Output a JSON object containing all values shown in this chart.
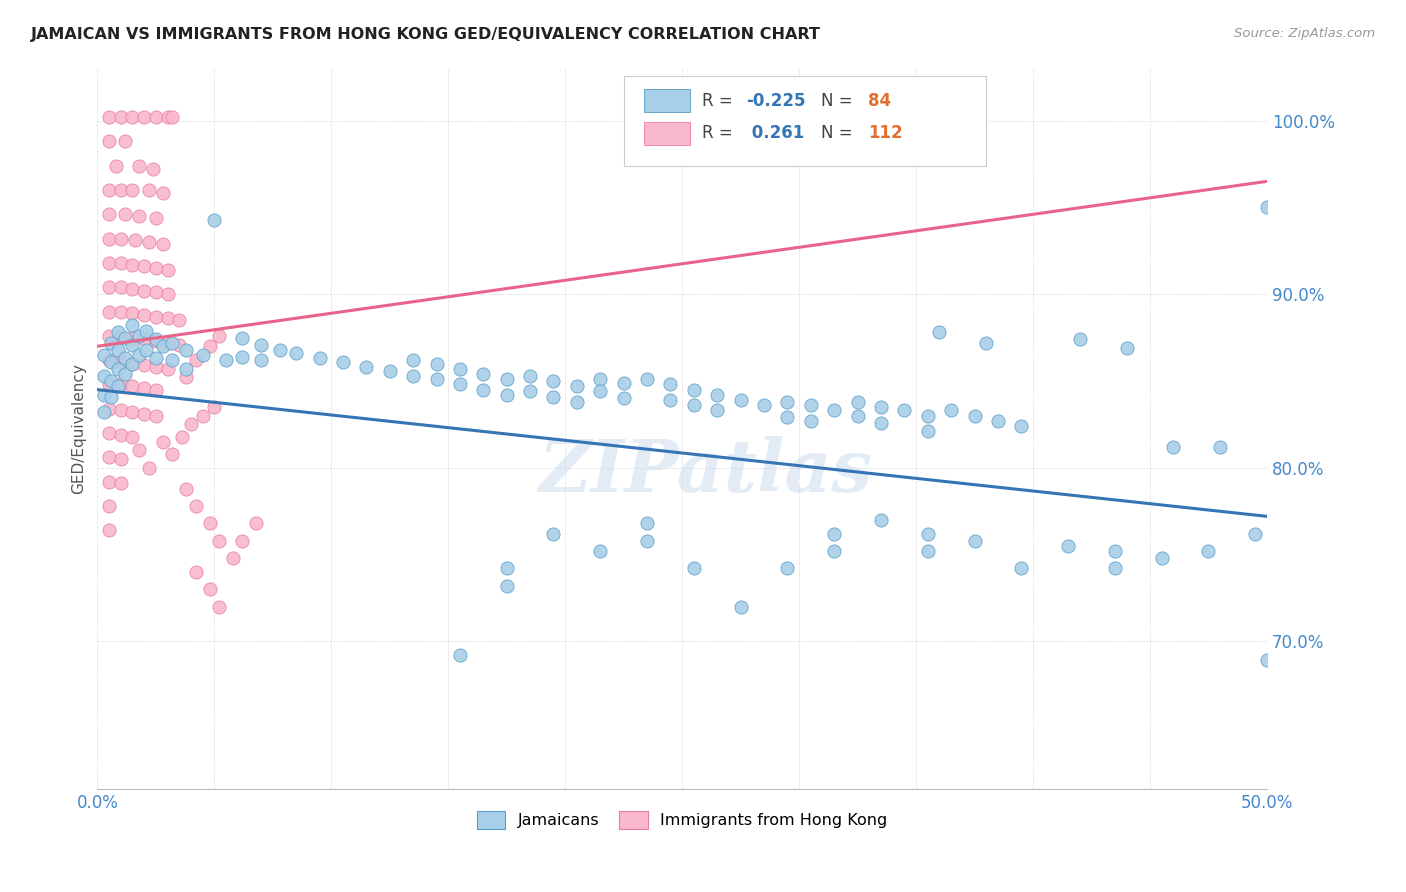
{
  "title": "JAMAICAN VS IMMIGRANTS FROM HONG KONG GED/EQUIVALENCY CORRELATION CHART",
  "source": "Source: ZipAtlas.com",
  "ylabel": "GED/Equivalency",
  "xlim": [
    0.0,
    0.5
  ],
  "ylim": [
    0.615,
    1.03
  ],
  "ytick_positions": [
    0.7,
    0.8,
    0.9,
    1.0
  ],
  "ytick_labels": [
    "70.0%",
    "80.0%",
    "90.0%",
    "100.0%"
  ],
  "blue_color": "#a8cfe8",
  "pink_color": "#f9b8cb",
  "blue_edge_color": "#5b9dc9",
  "pink_edge_color": "#e87da0",
  "blue_line_color": "#3575b5",
  "pink_line_color": "#e8648a",
  "R_blue": -0.225,
  "N_blue": 84,
  "R_pink": 0.261,
  "N_pink": 112,
  "legend_R_color": "#3575b5",
  "legend_N_color": "#e07030",
  "watermark": "ZIPatlas",
  "legend_label_blue": "Jamaicans",
  "legend_label_pink": "Immigrants from Hong Kong",
  "blue_points": [
    [
      0.003,
      0.865
    ],
    [
      0.003,
      0.853
    ],
    [
      0.003,
      0.842
    ],
    [
      0.003,
      0.832
    ],
    [
      0.006,
      0.872
    ],
    [
      0.006,
      0.861
    ],
    [
      0.006,
      0.85
    ],
    [
      0.006,
      0.841
    ],
    [
      0.009,
      0.878
    ],
    [
      0.009,
      0.868
    ],
    [
      0.009,
      0.857
    ],
    [
      0.009,
      0.847
    ],
    [
      0.012,
      0.875
    ],
    [
      0.012,
      0.863
    ],
    [
      0.012,
      0.854
    ],
    [
      0.015,
      0.882
    ],
    [
      0.015,
      0.871
    ],
    [
      0.015,
      0.86
    ],
    [
      0.018,
      0.876
    ],
    [
      0.018,
      0.865
    ],
    [
      0.021,
      0.879
    ],
    [
      0.021,
      0.868
    ],
    [
      0.025,
      0.874
    ],
    [
      0.025,
      0.863
    ],
    [
      0.028,
      0.87
    ],
    [
      0.032,
      0.872
    ],
    [
      0.032,
      0.862
    ],
    [
      0.038,
      0.868
    ],
    [
      0.038,
      0.857
    ],
    [
      0.045,
      0.865
    ],
    [
      0.05,
      0.943
    ],
    [
      0.055,
      0.862
    ],
    [
      0.062,
      0.875
    ],
    [
      0.062,
      0.864
    ],
    [
      0.07,
      0.871
    ],
    [
      0.07,
      0.862
    ],
    [
      0.078,
      0.868
    ],
    [
      0.085,
      0.866
    ],
    [
      0.095,
      0.863
    ],
    [
      0.105,
      0.861
    ],
    [
      0.115,
      0.858
    ],
    [
      0.125,
      0.856
    ],
    [
      0.135,
      0.862
    ],
    [
      0.135,
      0.853
    ],
    [
      0.145,
      0.86
    ],
    [
      0.145,
      0.851
    ],
    [
      0.155,
      0.857
    ],
    [
      0.155,
      0.848
    ],
    [
      0.165,
      0.854
    ],
    [
      0.165,
      0.845
    ],
    [
      0.175,
      0.851
    ],
    [
      0.175,
      0.842
    ],
    [
      0.185,
      0.853
    ],
    [
      0.185,
      0.844
    ],
    [
      0.195,
      0.85
    ],
    [
      0.195,
      0.841
    ],
    [
      0.205,
      0.847
    ],
    [
      0.205,
      0.838
    ],
    [
      0.215,
      0.851
    ],
    [
      0.215,
      0.844
    ],
    [
      0.225,
      0.849
    ],
    [
      0.225,
      0.84
    ],
    [
      0.235,
      0.851
    ],
    [
      0.245,
      0.848
    ],
    [
      0.245,
      0.839
    ],
    [
      0.255,
      0.845
    ],
    [
      0.255,
      0.836
    ],
    [
      0.265,
      0.842
    ],
    [
      0.265,
      0.833
    ],
    [
      0.275,
      0.839
    ],
    [
      0.285,
      0.836
    ],
    [
      0.295,
      0.838
    ],
    [
      0.295,
      0.829
    ],
    [
      0.305,
      0.836
    ],
    [
      0.305,
      0.827
    ],
    [
      0.315,
      0.833
    ],
    [
      0.325,
      0.838
    ],
    [
      0.325,
      0.83
    ],
    [
      0.335,
      0.835
    ],
    [
      0.335,
      0.826
    ],
    [
      0.345,
      0.833
    ],
    [
      0.355,
      0.83
    ],
    [
      0.355,
      0.821
    ],
    [
      0.365,
      0.833
    ],
    [
      0.375,
      0.83
    ],
    [
      0.385,
      0.827
    ],
    [
      0.395,
      0.824
    ],
    [
      0.155,
      0.692
    ],
    [
      0.175,
      0.742
    ],
    [
      0.175,
      0.732
    ],
    [
      0.195,
      0.762
    ],
    [
      0.215,
      0.752
    ],
    [
      0.235,
      0.768
    ],
    [
      0.235,
      0.758
    ],
    [
      0.255,
      0.742
    ],
    [
      0.275,
      0.72
    ],
    [
      0.295,
      0.742
    ],
    [
      0.315,
      0.762
    ],
    [
      0.315,
      0.752
    ],
    [
      0.335,
      0.77
    ],
    [
      0.355,
      0.762
    ],
    [
      0.355,
      0.752
    ],
    [
      0.375,
      0.758
    ],
    [
      0.395,
      0.742
    ],
    [
      0.415,
      0.755
    ],
    [
      0.435,
      0.752
    ],
    [
      0.435,
      0.742
    ],
    [
      0.455,
      0.748
    ],
    [
      0.475,
      0.752
    ],
    [
      0.495,
      0.762
    ],
    [
      0.36,
      0.878
    ],
    [
      0.38,
      0.872
    ],
    [
      0.42,
      0.874
    ],
    [
      0.44,
      0.869
    ],
    [
      0.46,
      0.812
    ],
    [
      0.48,
      0.812
    ],
    [
      0.5,
      0.95
    ],
    [
      0.5,
      0.689
    ]
  ],
  "pink_points": [
    [
      0.005,
      1.002
    ],
    [
      0.01,
      1.002
    ],
    [
      0.015,
      1.002
    ],
    [
      0.02,
      1.002
    ],
    [
      0.025,
      1.002
    ],
    [
      0.03,
      1.002
    ],
    [
      0.032,
      1.002
    ],
    [
      0.005,
      0.988
    ],
    [
      0.012,
      0.988
    ],
    [
      0.008,
      0.974
    ],
    [
      0.018,
      0.974
    ],
    [
      0.024,
      0.972
    ],
    [
      0.005,
      0.96
    ],
    [
      0.01,
      0.96
    ],
    [
      0.015,
      0.96
    ],
    [
      0.022,
      0.96
    ],
    [
      0.028,
      0.958
    ],
    [
      0.005,
      0.946
    ],
    [
      0.012,
      0.946
    ],
    [
      0.018,
      0.945
    ],
    [
      0.025,
      0.944
    ],
    [
      0.005,
      0.932
    ],
    [
      0.01,
      0.932
    ],
    [
      0.016,
      0.931
    ],
    [
      0.022,
      0.93
    ],
    [
      0.028,
      0.929
    ],
    [
      0.005,
      0.918
    ],
    [
      0.01,
      0.918
    ],
    [
      0.015,
      0.917
    ],
    [
      0.02,
      0.916
    ],
    [
      0.025,
      0.915
    ],
    [
      0.03,
      0.914
    ],
    [
      0.005,
      0.904
    ],
    [
      0.01,
      0.904
    ],
    [
      0.015,
      0.903
    ],
    [
      0.02,
      0.902
    ],
    [
      0.025,
      0.901
    ],
    [
      0.03,
      0.9
    ],
    [
      0.005,
      0.89
    ],
    [
      0.01,
      0.89
    ],
    [
      0.015,
      0.889
    ],
    [
      0.02,
      0.888
    ],
    [
      0.025,
      0.887
    ],
    [
      0.03,
      0.886
    ],
    [
      0.035,
      0.885
    ],
    [
      0.005,
      0.876
    ],
    [
      0.01,
      0.876
    ],
    [
      0.015,
      0.875
    ],
    [
      0.02,
      0.874
    ],
    [
      0.025,
      0.873
    ],
    [
      0.03,
      0.872
    ],
    [
      0.035,
      0.871
    ],
    [
      0.005,
      0.862
    ],
    [
      0.01,
      0.861
    ],
    [
      0.015,
      0.86
    ],
    [
      0.02,
      0.859
    ],
    [
      0.025,
      0.858
    ],
    [
      0.03,
      0.857
    ],
    [
      0.005,
      0.848
    ],
    [
      0.01,
      0.848
    ],
    [
      0.015,
      0.847
    ],
    [
      0.02,
      0.846
    ],
    [
      0.025,
      0.845
    ],
    [
      0.005,
      0.834
    ],
    [
      0.01,
      0.833
    ],
    [
      0.015,
      0.832
    ],
    [
      0.02,
      0.831
    ],
    [
      0.025,
      0.83
    ],
    [
      0.005,
      0.82
    ],
    [
      0.01,
      0.819
    ],
    [
      0.015,
      0.818
    ],
    [
      0.005,
      0.806
    ],
    [
      0.01,
      0.805
    ],
    [
      0.005,
      0.792
    ],
    [
      0.01,
      0.791
    ],
    [
      0.005,
      0.778
    ],
    [
      0.005,
      0.764
    ],
    [
      0.018,
      0.81
    ],
    [
      0.022,
      0.8
    ],
    [
      0.028,
      0.815
    ],
    [
      0.032,
      0.808
    ],
    [
      0.036,
      0.818
    ],
    [
      0.04,
      0.825
    ],
    [
      0.045,
      0.83
    ],
    [
      0.05,
      0.835
    ],
    [
      0.038,
      0.852
    ],
    [
      0.042,
      0.862
    ],
    [
      0.048,
      0.87
    ],
    [
      0.052,
      0.876
    ],
    [
      0.038,
      0.788
    ],
    [
      0.042,
      0.778
    ],
    [
      0.048,
      0.768
    ],
    [
      0.052,
      0.758
    ],
    [
      0.058,
      0.748
    ],
    [
      0.062,
      0.758
    ],
    [
      0.068,
      0.768
    ],
    [
      0.042,
      0.74
    ],
    [
      0.048,
      0.73
    ],
    [
      0.052,
      0.72
    ]
  ]
}
